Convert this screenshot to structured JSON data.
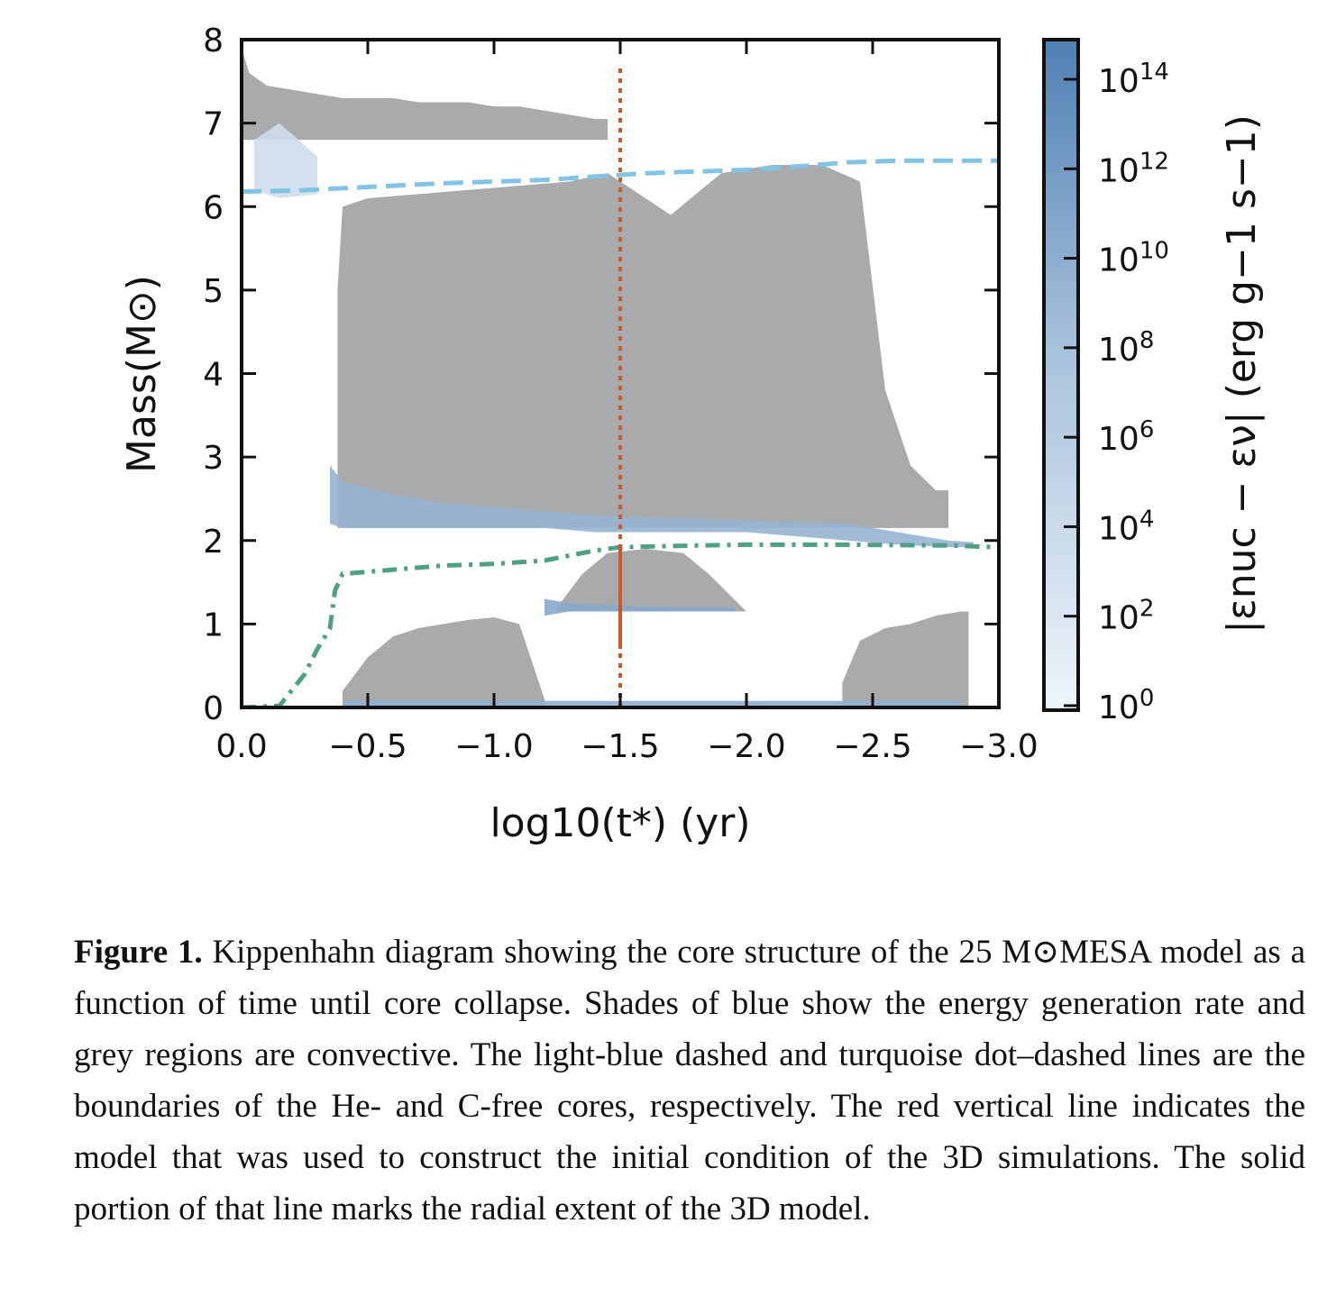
{
  "chart_data": {
    "type": "area",
    "xlabel": "log10(t*) (yr)",
    "ylabel": "Mass(M⊙)",
    "colorbar_label": "|εnuc − εν| (erg g−1 s−1)",
    "xlim": [
      0.0,
      -3.0
    ],
    "ylim": [
      0,
      8
    ],
    "xticks": [
      "0.0",
      "−0.5",
      "−1.0",
      "−1.5",
      "−2.0",
      "−2.5",
      "−3.0"
    ],
    "yticks": [
      "0",
      "1",
      "2",
      "3",
      "4",
      "5",
      "6",
      "7",
      "8"
    ],
    "colorbar_ticks": [
      "10^0",
      "10^2",
      "10^4",
      "10^6",
      "10^8",
      "10^10",
      "10^12",
      "10^14"
    ],
    "colors": {
      "convective": "#a8aaab",
      "energy_low": "#eef4fa",
      "energy_high": "#4f80b3",
      "he_free_core": "#82c4e6",
      "c_free_core": "#4f9e86",
      "model_line": "#c8592a"
    },
    "series": [
      {
        "style": "dashed",
        "x": [
          0.0,
          -0.2,
          -0.4,
          -0.6,
          -0.8,
          -1.0,
          -1.2,
          -1.4,
          -1.6,
          -1.8,
          -2.0,
          -2.2,
          -2.4,
          -2.6,
          -2.8,
          -3.0
        ],
        "y": [
          6.18,
          6.19,
          6.22,
          6.25,
          6.28,
          6.3,
          6.32,
          6.36,
          6.4,
          6.42,
          6.44,
          6.48,
          6.53,
          6.55,
          6.55,
          6.55
        ]
      },
      {
        "style": "dot-dashed",
        "x": [
          0.0,
          -0.15,
          -0.25,
          -0.3,
          -0.35,
          -0.37,
          -0.4,
          -0.6,
          -0.8,
          -1.0,
          -1.2,
          -1.4,
          -1.5,
          -1.8,
          -2.0,
          -2.4,
          -2.8,
          -3.0
        ],
        "y": [
          0.0,
          0.02,
          0.4,
          0.7,
          0.95,
          1.4,
          1.6,
          1.65,
          1.7,
          1.72,
          1.76,
          1.88,
          1.92,
          1.94,
          1.95,
          1.95,
          1.94,
          1.92
        ]
      },
      {
        "style": "vertical-dotted",
        "x": -1.5,
        "y_range": [
          0.0,
          7.7
        ],
        "solid_range": [
          0.7,
          1.95
        ]
      }
    ],
    "convective_regions": [
      {
        "x": [
          0.0,
          -0.03,
          -0.1,
          -0.2,
          -0.3,
          -0.4,
          -0.5,
          -0.6,
          -0.7,
          -0.8,
          -0.9,
          -1.0,
          -1.1,
          -1.2,
          -1.3,
          -1.4,
          -1.45
        ],
        "top": [
          7.9,
          7.6,
          7.45,
          7.4,
          7.35,
          7.3,
          7.3,
          7.3,
          7.25,
          7.25,
          7.25,
          7.2,
          7.2,
          7.15,
          7.1,
          7.05,
          7.05
        ],
        "bottom": 6.8
      },
      {
        "x": [
          -0.38,
          -0.4,
          -0.5,
          -0.7,
          -0.9,
          -1.1,
          -1.3,
          -1.45,
          -1.55,
          -1.7,
          -1.9,
          -2.1,
          -2.3,
          -2.45,
          -2.55,
          -2.65,
          -2.75,
          -2.8
        ],
        "top": [
          5.0,
          6.0,
          6.1,
          6.15,
          6.2,
          6.25,
          6.3,
          6.4,
          6.2,
          5.9,
          6.4,
          6.5,
          6.5,
          6.3,
          3.8,
          2.9,
          2.6,
          2.6
        ],
        "bottom": 2.15
      },
      {
        "x": [
          -1.25,
          -1.35,
          -1.45,
          -1.6,
          -1.75,
          -1.85,
          -1.95,
          -2.0
        ],
        "top": [
          1.2,
          1.6,
          1.85,
          1.9,
          1.85,
          1.6,
          1.3,
          1.15
        ],
        "bottom": 1.15
      },
      {
        "x": [
          -0.4,
          -0.5,
          -0.6,
          -0.7,
          -0.8,
          -0.9,
          -1.0,
          -1.1,
          -1.2
        ],
        "top": [
          0.2,
          0.6,
          0.85,
          0.95,
          1.0,
          1.05,
          1.08,
          1.0,
          0.1
        ],
        "bottom": 0.0
      },
      {
        "x": [
          -2.38,
          -2.45,
          -2.55,
          -2.65,
          -2.75,
          -2.85,
          -2.88
        ],
        "top": [
          0.3,
          0.8,
          0.95,
          1.0,
          1.1,
          1.15,
          1.15
        ],
        "bottom": 0.0
      }
    ],
    "energy_regions": [
      {
        "x": [
          -0.35,
          -0.4,
          -0.6,
          -0.8,
          -1.0,
          -1.2,
          -1.4,
          -1.6,
          -1.8,
          -2.0,
          -2.2,
          -2.4,
          -2.6,
          -2.8,
          -2.9
        ],
        "top": [
          2.9,
          2.7,
          2.55,
          2.45,
          2.4,
          2.35,
          2.3,
          2.28,
          2.26,
          2.24,
          2.22,
          2.2,
          2.1,
          2.0,
          1.98
        ],
        "bottom": [
          2.2,
          2.15,
          2.15,
          2.15,
          2.15,
          2.15,
          2.1,
          2.1,
          2.1,
          2.1,
          2.05,
          2.0,
          1.95,
          1.92,
          1.92
        ],
        "level": 0.55
      },
      {
        "x": [
          -0.4,
          -0.8,
          -1.2,
          -1.4,
          -1.5,
          -1.8,
          -2.0,
          -2.4,
          -2.8,
          -2.85
        ],
        "top": [
          0.08,
          0.08,
          0.08,
          0.08,
          0.08,
          0.08,
          0.08,
          0.08,
          0.08,
          0.08
        ],
        "bottom": [
          0.0,
          0.0,
          0.0,
          0.0,
          0.0,
          0.0,
          0.0,
          0.0,
          0.0,
          0.0
        ],
        "level": 0.6
      },
      {
        "x": [
          -1.2,
          -1.3,
          -1.5,
          -1.7,
          -1.95
        ],
        "top": [
          1.3,
          1.25,
          1.22,
          1.2,
          1.2
        ],
        "bottom": [
          1.1,
          1.15,
          1.15,
          1.15,
          1.15
        ],
        "level": 0.65
      },
      {
        "x": [
          -0.05,
          -0.15,
          -0.3
        ],
        "top": [
          6.8,
          7.0,
          6.6
        ],
        "bottom": [
          6.2,
          6.1,
          6.15
        ],
        "level": 0.2
      }
    ]
  },
  "caption": {
    "label": "Figure 1.",
    "text": "Kippenhahn diagram showing the core structure of the 25 M⊙MESA model as a function of time until core collapse. Shades of blue show the energy generation rate and grey regions are convective. The light-blue dashed and turquoise dot–dashed lines are the boundaries of the He- and C-free cores, respectively. The red vertical line indicates the model that was used to construct the initial condition of the 3D simulations. The solid portion of that line marks the radial extent of the 3D model."
  }
}
